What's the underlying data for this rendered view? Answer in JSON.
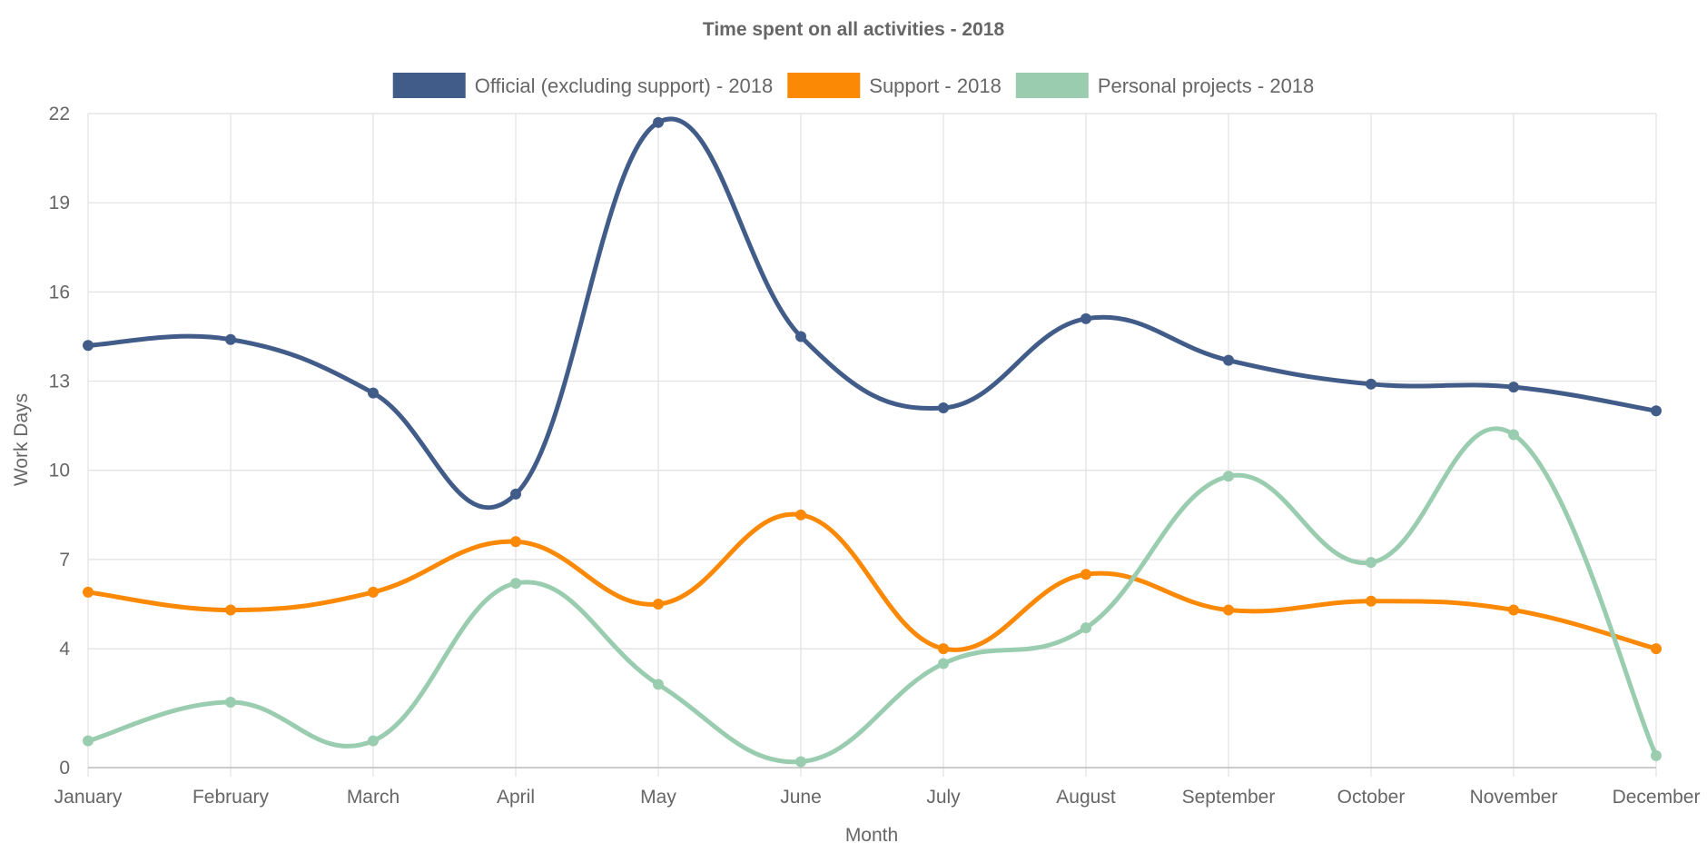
{
  "chart_data": {
    "type": "line",
    "title": "Time spent on all activities - 2018",
    "xlabel": "Month",
    "ylabel": "Work Days",
    "ylim": [
      0,
      22
    ],
    "yticks": [
      0,
      4,
      7,
      10,
      13,
      16,
      19,
      22
    ],
    "grid": true,
    "legend_position": "top",
    "categories": [
      "January",
      "February",
      "March",
      "April",
      "May",
      "June",
      "July",
      "August",
      "September",
      "October",
      "November",
      "December"
    ],
    "series": [
      {
        "name": "Official (excluding support) - 2018",
        "color": "#415c89",
        "values": [
          14.2,
          14.4,
          12.6,
          9.2,
          21.7,
          14.5,
          12.1,
          15.1,
          13.7,
          12.9,
          12.8,
          12.0
        ]
      },
      {
        "name": "Support - 2018",
        "color": "#fc8905",
        "values": [
          5.9,
          5.3,
          5.9,
          7.6,
          5.5,
          8.5,
          4.0,
          6.5,
          5.3,
          5.6,
          5.3,
          4.0
        ]
      },
      {
        "name": "Personal projects - 2018",
        "color": "#9acdb0",
        "values": [
          0.9,
          2.2,
          0.9,
          6.2,
          2.8,
          0.2,
          3.5,
          4.7,
          9.8,
          6.9,
          11.2,
          0.4
        ]
      }
    ]
  }
}
